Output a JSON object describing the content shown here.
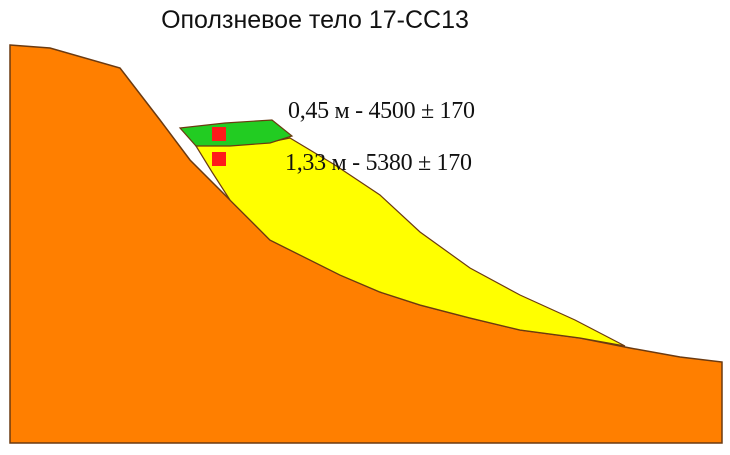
{
  "diagram": {
    "title": "Оползневое тело 17-CC13",
    "samples": [
      {
        "label": "0,45 м - 4500 ± 170",
        "marker_color": "#ff1a1a"
      },
      {
        "label": "1,33 м - 5380 ± 170",
        "marker_color": "#ff1a1a"
      }
    ],
    "layers": [
      {
        "name": "bedrock",
        "color": "#ff7f00"
      },
      {
        "name": "landslide-body",
        "color": "#ffff00"
      },
      {
        "name": "soil-cap",
        "color": "#22cc22"
      }
    ],
    "outline_color": "#6b3a10"
  }
}
